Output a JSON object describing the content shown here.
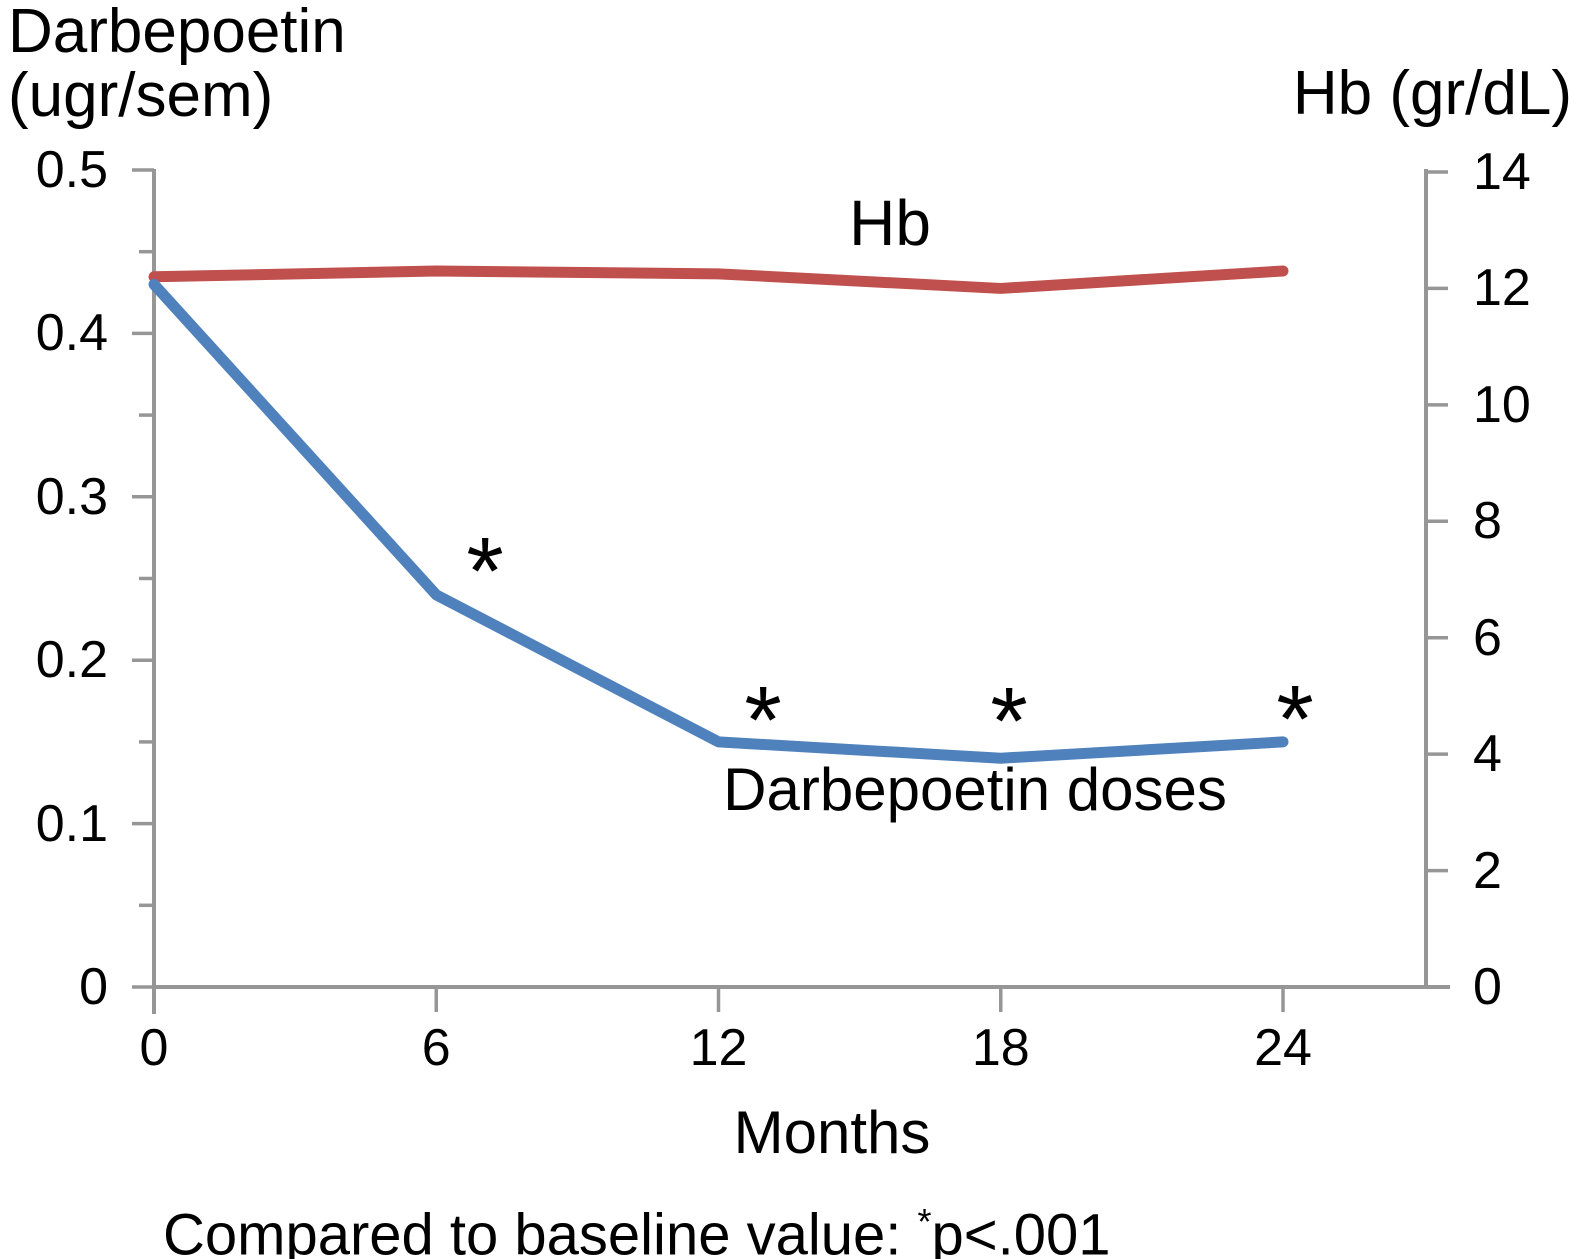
{
  "chart_data": {
    "type": "line",
    "x_axis": {
      "label": "Months",
      "min": 0,
      "max": 24,
      "tick_values": [
        0,
        6,
        12,
        18,
        24
      ],
      "tick_labels": [
        "0",
        "6",
        "12",
        "18",
        "24"
      ]
    },
    "left_y_axis": {
      "label": "Darbepoetin (ugr/sem)",
      "label_line1": "Darbepoetin",
      "label_line2": "(ugr/sem)",
      "min": 0,
      "max": 0.5,
      "tick_values": [
        0.5,
        0.4,
        0.3,
        0.2,
        0.1,
        0
      ],
      "tick_labels": [
        "0.5",
        "0.4",
        "0.3",
        "0.2",
        "0.1",
        "0"
      ],
      "minor_tick_values": [
        0.45,
        0.35,
        0.25,
        0.15,
        0.05
      ]
    },
    "right_y_axis": {
      "label": "Hb (gr/dL)",
      "min": 0,
      "max": 14,
      "tick_values": [
        14,
        12,
        10,
        8,
        6,
        4,
        2,
        0
      ],
      "tick_labels": [
        "14",
        "12",
        "10",
        "8",
        "6",
        "4",
        "2",
        "0"
      ]
    },
    "series": [
      {
        "name": "Hb",
        "inline_label": "Hb",
        "axis": "right",
        "color": "#C0504D",
        "x": [
          0,
          6,
          12,
          18,
          24
        ],
        "values": [
          12.2,
          12.3,
          12.25,
          12.0,
          12.3
        ]
      },
      {
        "name": "Darbepoetin doses",
        "inline_label": "Darbepoetin doses",
        "axis": "left",
        "color": "#4F81BD",
        "x": [
          0,
          6,
          12,
          18,
          24
        ],
        "values": [
          0.43,
          0.24,
          0.15,
          0.14,
          0.15
        ]
      }
    ],
    "significance_markers": {
      "symbol": "*",
      "at_months": [
        6,
        12,
        18,
        24
      ],
      "meaning": "p<.001 vs baseline"
    },
    "caption": {
      "prefix": "Compared to baseline value: ",
      "marker": "*",
      "suffix": "p<.001"
    },
    "axis_color": "#969696",
    "text_color": "#000000",
    "grid": false,
    "legend": "inline labels"
  }
}
